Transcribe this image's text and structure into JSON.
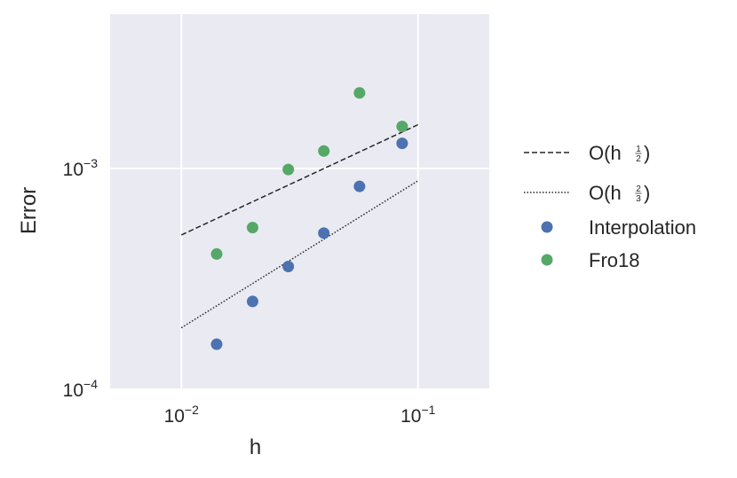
{
  "chart_data": {
    "type": "scatter",
    "xscale": "log",
    "yscale": "log",
    "xlim": [
      0.005,
      0.2
    ],
    "ylim": [
      0.0001,
      0.005
    ],
    "xlabel": "h",
    "ylabel": "Error",
    "grid": true,
    "background": "#EAEAF2",
    "legend_position": "outside-right",
    "x_ticks": [
      {
        "value": 0.01,
        "base": "10",
        "exp": "−2"
      },
      {
        "value": 0.1,
        "base": "10",
        "exp": "−1"
      }
    ],
    "y_ticks": [
      {
        "value": 0.0001,
        "base": "10",
        "exp": "−4"
      },
      {
        "value": 0.001,
        "base": "10",
        "exp": "−3"
      }
    ],
    "lines": [
      {
        "name": "O(h",
        "frac_num": "1",
        "frac_den": "2",
        "style": "dashed",
        "color": "#262626",
        "x": [
          0.01,
          0.1
        ],
        "y": [
          0.0005,
          0.00158
        ]
      },
      {
        "name": "O(h",
        "frac_num": "2",
        "frac_den": "3",
        "style": "dotted",
        "color": "#262626",
        "x": [
          0.01,
          0.1
        ],
        "y": [
          0.00019,
          0.00088
        ]
      }
    ],
    "series": [
      {
        "name": "Interpolation",
        "color": "#4C72B0",
        "x": [
          0.0141,
          0.02,
          0.0283,
          0.04,
          0.0566,
          0.0857
        ],
        "y": [
          0.00016,
          0.00025,
          0.00036,
          0.00051,
          0.00083,
          0.0013
        ]
      },
      {
        "name": "Fro18",
        "color": "#55A868",
        "x": [
          0.0141,
          0.02,
          0.0283,
          0.04,
          0.0566,
          0.0857
        ],
        "y": [
          0.00041,
          0.00054,
          0.00099,
          0.0012,
          0.0022,
          0.00155
        ]
      }
    ]
  }
}
